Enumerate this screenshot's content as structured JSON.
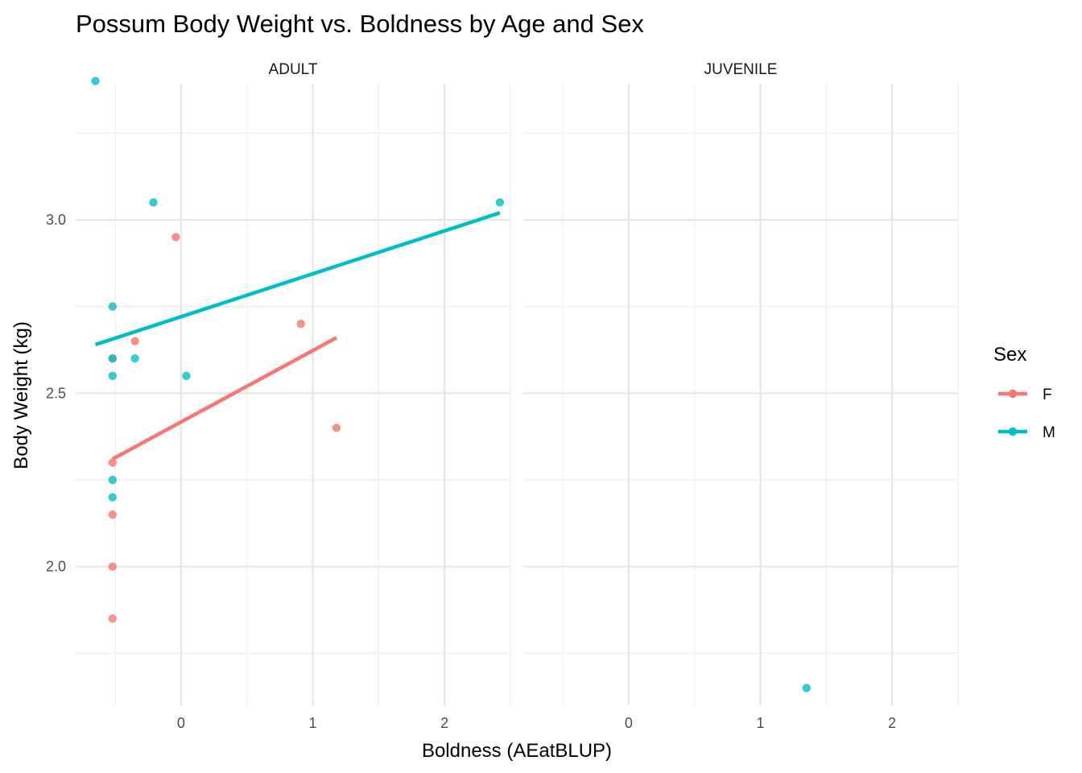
{
  "chart_data": {
    "type": "scatter",
    "title": "Possum Body Weight vs. Boldness by Age and Sex",
    "xlabel": "Boldness (AEatBLUP)",
    "ylabel": "Body Weight (kg)",
    "xlim": [
      -0.8,
      2.5
    ],
    "ylim": [
      1.6,
      3.42
    ],
    "x_ticks": [
      0,
      1,
      2
    ],
    "y_ticks": [
      2.0,
      2.5,
      3.0
    ],
    "grid": true,
    "legend": {
      "title": "Sex",
      "position": "right",
      "entries": [
        {
          "label": "F",
          "color": "#F8766D"
        },
        {
          "label": "M",
          "color": "#00BFC4"
        }
      ]
    },
    "facets": [
      {
        "label": "ADULT",
        "series": [
          {
            "name": "F",
            "color": "#F8766D",
            "points": [
              {
                "x": -0.52,
                "y": 2.6
              },
              {
                "x": -0.35,
                "y": 2.65
              },
              {
                "x": -0.04,
                "y": 2.95
              },
              {
                "x": 0.91,
                "y": 2.7
              },
              {
                "x": 1.18,
                "y": 2.4
              },
              {
                "x": -0.52,
                "y": 2.3
              },
              {
                "x": -0.52,
                "y": 2.15
              },
              {
                "x": -0.52,
                "y": 2.0
              },
              {
                "x": -0.52,
                "y": 1.85
              }
            ],
            "trend": {
              "x": [
                -0.52,
                1.18
              ],
              "y": [
                2.31,
                2.66
              ]
            }
          },
          {
            "name": "M",
            "color": "#00BFC4",
            "points": [
              {
                "x": -0.65,
                "y": 3.4
              },
              {
                "x": -0.21,
                "y": 3.05
              },
              {
                "x": 2.42,
                "y": 3.05
              },
              {
                "x": -0.52,
                "y": 2.75
              },
              {
                "x": -0.52,
                "y": 2.6
              },
              {
                "x": -0.35,
                "y": 2.6
              },
              {
                "x": -0.52,
                "y": 2.55
              },
              {
                "x": 0.04,
                "y": 2.55
              },
              {
                "x": -0.52,
                "y": 2.25
              },
              {
                "x": -0.52,
                "y": 2.2
              }
            ],
            "trend": {
              "x": [
                -0.65,
                2.42
              ],
              "y": [
                2.64,
                3.02
              ]
            }
          }
        ]
      },
      {
        "label": "JUVENILE",
        "series": [
          {
            "name": "F",
            "color": "#F8766D",
            "points": [],
            "trend": null
          },
          {
            "name": "M",
            "color": "#00BFC4",
            "points": [
              {
                "x": 1.35,
                "y": 1.65
              }
            ],
            "trend": null
          }
        ]
      }
    ]
  }
}
